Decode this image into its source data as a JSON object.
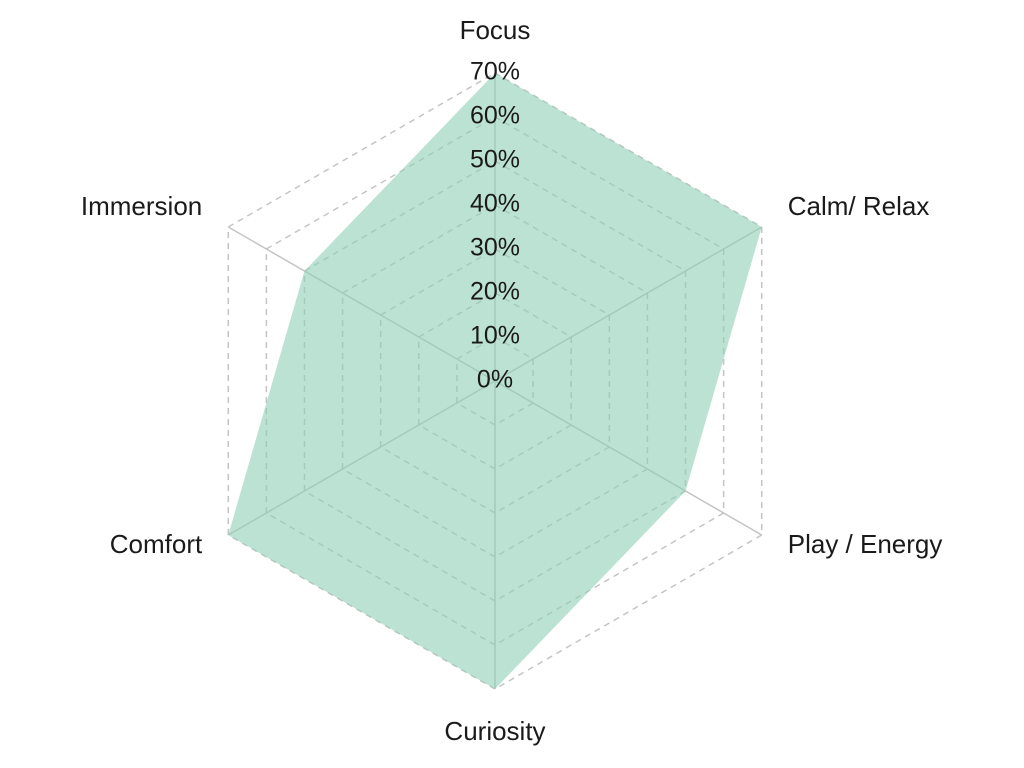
{
  "chart_data": {
    "type": "radar",
    "categories": [
      "Focus",
      "Calm/ Relax",
      "Play / Energy",
      "Curiosity",
      "Comfort",
      "Immersion"
    ],
    "values": [
      70,
      70,
      50,
      70,
      70,
      50
    ],
    "color": "#8fceb6",
    "rlim": [
      0,
      70
    ],
    "rticks": [
      {
        "value": 0,
        "label": "0%"
      },
      {
        "value": 10,
        "label": "10%"
      },
      {
        "value": 20,
        "label": "20%"
      },
      {
        "value": 30,
        "label": "30%"
      },
      {
        "value": 40,
        "label": "40%"
      },
      {
        "value": 50,
        "label": "50%"
      },
      {
        "value": 60,
        "label": "60%"
      },
      {
        "value": 70,
        "label": "70%"
      }
    ],
    "grid": true
  }
}
